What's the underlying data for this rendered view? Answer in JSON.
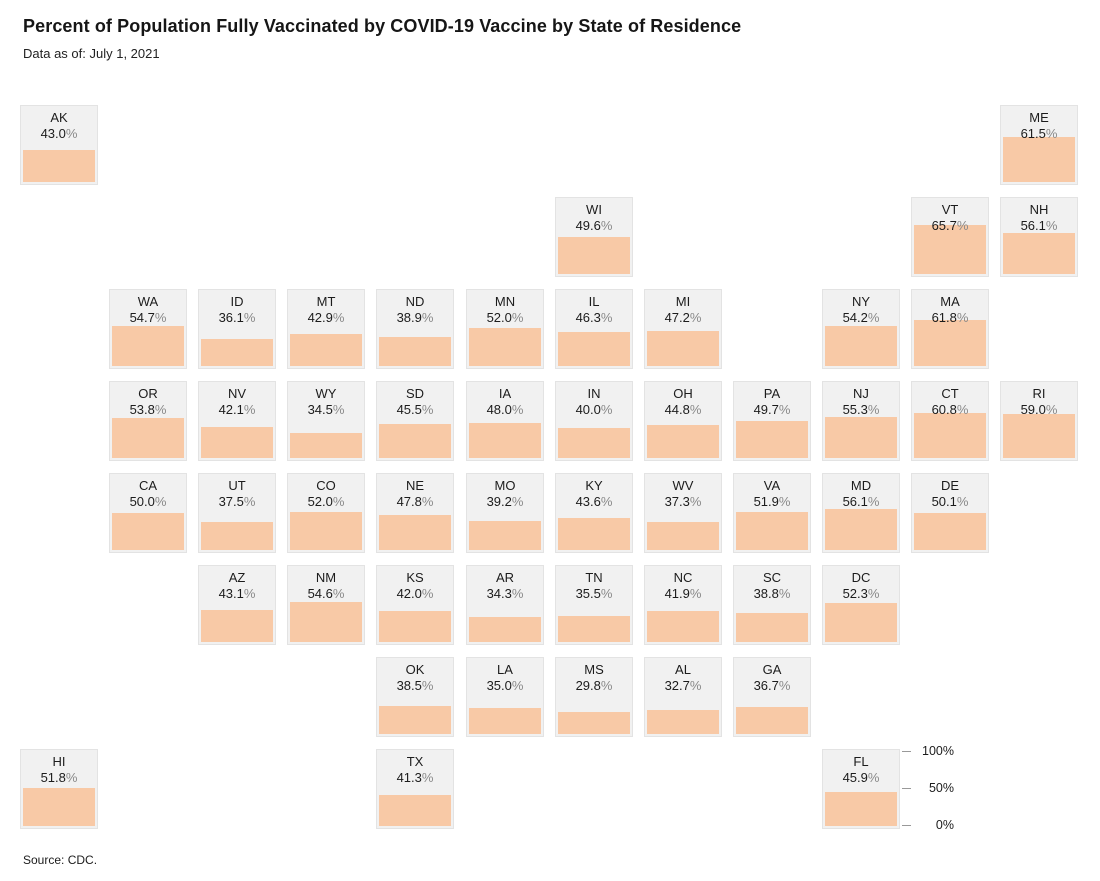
{
  "colors": {
    "fill": "#f8c9a6",
    "tile_bg": "#f1f1f1",
    "tile_border": "#e3e3e3",
    "pct_sign": "#8a8a8a",
    "text": "#1c1c1c"
  },
  "chart_data": {
    "type": "tile-grid-map",
    "title": "Percent of Population Fully Vaccinated by COVID-19 Vaccine by State of Residence",
    "subtitle": "Data as of: July 1, 2021",
    "source": "Source: CDC.",
    "unit": "%",
    "scale": {
      "min": 0,
      "max": 100,
      "ticks": [
        {
          "label": "100%",
          "frac": 1.0
        },
        {
          "label": "50%",
          "frac": 0.5
        },
        {
          "label": "0%",
          "frac": 0.0
        }
      ],
      "legend_position": "bottom-right"
    },
    "states": [
      {
        "abbr": "AK",
        "value": 43.0,
        "row": 1,
        "col": 1
      },
      {
        "abbr": "ME",
        "value": 61.5,
        "row": 1,
        "col": 12
      },
      {
        "abbr": "WI",
        "value": 49.6,
        "row": 2,
        "col": 7
      },
      {
        "abbr": "VT",
        "value": 65.7,
        "row": 2,
        "col": 11
      },
      {
        "abbr": "NH",
        "value": 56.1,
        "row": 2,
        "col": 12
      },
      {
        "abbr": "WA",
        "value": 54.7,
        "row": 3,
        "col": 2
      },
      {
        "abbr": "ID",
        "value": 36.1,
        "row": 3,
        "col": 3
      },
      {
        "abbr": "MT",
        "value": 42.9,
        "row": 3,
        "col": 4
      },
      {
        "abbr": "ND",
        "value": 38.9,
        "row": 3,
        "col": 5
      },
      {
        "abbr": "MN",
        "value": 52.0,
        "row": 3,
        "col": 6
      },
      {
        "abbr": "IL",
        "value": 46.3,
        "row": 3,
        "col": 7
      },
      {
        "abbr": "MI",
        "value": 47.2,
        "row": 3,
        "col": 8
      },
      {
        "abbr": "NY",
        "value": 54.2,
        "row": 3,
        "col": 10
      },
      {
        "abbr": "MA",
        "value": 61.8,
        "row": 3,
        "col": 11
      },
      {
        "abbr": "OR",
        "value": 53.8,
        "row": 4,
        "col": 2
      },
      {
        "abbr": "NV",
        "value": 42.1,
        "row": 4,
        "col": 3
      },
      {
        "abbr": "WY",
        "value": 34.5,
        "row": 4,
        "col": 4
      },
      {
        "abbr": "SD",
        "value": 45.5,
        "row": 4,
        "col": 5
      },
      {
        "abbr": "IA",
        "value": 48.0,
        "row": 4,
        "col": 6
      },
      {
        "abbr": "IN",
        "value": 40.0,
        "row": 4,
        "col": 7
      },
      {
        "abbr": "OH",
        "value": 44.8,
        "row": 4,
        "col": 8
      },
      {
        "abbr": "PA",
        "value": 49.7,
        "row": 4,
        "col": 9
      },
      {
        "abbr": "NJ",
        "value": 55.3,
        "row": 4,
        "col": 10
      },
      {
        "abbr": "CT",
        "value": 60.8,
        "row": 4,
        "col": 11
      },
      {
        "abbr": "RI",
        "value": 59.0,
        "row": 4,
        "col": 12
      },
      {
        "abbr": "CA",
        "value": 50.0,
        "row": 5,
        "col": 2
      },
      {
        "abbr": "UT",
        "value": 37.5,
        "row": 5,
        "col": 3
      },
      {
        "abbr": "CO",
        "value": 52.0,
        "row": 5,
        "col": 4
      },
      {
        "abbr": "NE",
        "value": 47.8,
        "row": 5,
        "col": 5
      },
      {
        "abbr": "MO",
        "value": 39.2,
        "row": 5,
        "col": 6
      },
      {
        "abbr": "KY",
        "value": 43.6,
        "row": 5,
        "col": 7
      },
      {
        "abbr": "WV",
        "value": 37.3,
        "row": 5,
        "col": 8
      },
      {
        "abbr": "VA",
        "value": 51.9,
        "row": 5,
        "col": 9
      },
      {
        "abbr": "MD",
        "value": 56.1,
        "row": 5,
        "col": 10
      },
      {
        "abbr": "DE",
        "value": 50.1,
        "row": 5,
        "col": 11
      },
      {
        "abbr": "AZ",
        "value": 43.1,
        "row": 6,
        "col": 3
      },
      {
        "abbr": "NM",
        "value": 54.6,
        "row": 6,
        "col": 4
      },
      {
        "abbr": "KS",
        "value": 42.0,
        "row": 6,
        "col": 5
      },
      {
        "abbr": "AR",
        "value": 34.3,
        "row": 6,
        "col": 6
      },
      {
        "abbr": "TN",
        "value": 35.5,
        "row": 6,
        "col": 7
      },
      {
        "abbr": "NC",
        "value": 41.9,
        "row": 6,
        "col": 8
      },
      {
        "abbr": "SC",
        "value": 38.8,
        "row": 6,
        "col": 9
      },
      {
        "abbr": "DC",
        "value": 52.3,
        "row": 6,
        "col": 10
      },
      {
        "abbr": "OK",
        "value": 38.5,
        "row": 7,
        "col": 5
      },
      {
        "abbr": "LA",
        "value": 35.0,
        "row": 7,
        "col": 6
      },
      {
        "abbr": "MS",
        "value": 29.8,
        "row": 7,
        "col": 7
      },
      {
        "abbr": "AL",
        "value": 32.7,
        "row": 7,
        "col": 8
      },
      {
        "abbr": "GA",
        "value": 36.7,
        "row": 7,
        "col": 9
      },
      {
        "abbr": "HI",
        "value": 51.8,
        "row": 8,
        "col": 1
      },
      {
        "abbr": "TX",
        "value": 41.3,
        "row": 8,
        "col": 5
      },
      {
        "abbr": "FL",
        "value": 45.9,
        "row": 8,
        "col": 10
      }
    ]
  }
}
